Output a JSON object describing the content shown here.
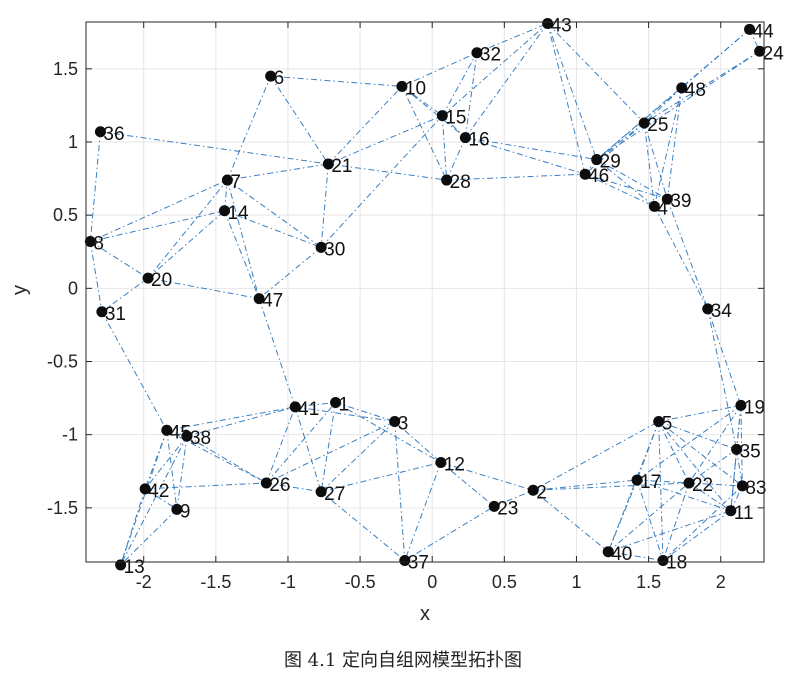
{
  "chart_data": {
    "type": "scatter",
    "title": "",
    "xlabel": "x",
    "ylabel": "y",
    "xlim": [
      -2.4,
      2.3
    ],
    "ylim": [
      -1.87,
      1.82
    ],
    "xticks": [
      -2,
      -1.5,
      -1,
      -0.5,
      0,
      0.5,
      1,
      1.5,
      2
    ],
    "xtick_labels": [
      "-2",
      "-1.5",
      "-1",
      "-0.5",
      "0",
      "0.5",
      "1",
      "1.5",
      "2"
    ],
    "yticks": [
      -1.5,
      -1,
      -0.5,
      0,
      0.5,
      1,
      1.5
    ],
    "ytick_labels": [
      "-1.5",
      "-1",
      "-0.5",
      "0",
      "0.5",
      "1",
      "1.5"
    ],
    "grid": true,
    "colors": {
      "edge": "#3a7fc1",
      "node": "#0d0d0d",
      "grid": "#e6e6e6",
      "axis": "#262626"
    },
    "nodes": [
      {
        "id": "1",
        "x": -0.67,
        "y": -0.78
      },
      {
        "id": "3",
        "x": -0.26,
        "y": -0.91
      },
      {
        "id": "4",
        "x": 1.54,
        "y": 0.56
      },
      {
        "id": "5",
        "x": 1.57,
        "y": -0.91
      },
      {
        "id": "6",
        "x": -1.12,
        "y": 1.45
      },
      {
        "id": "7",
        "x": -1.42,
        "y": 0.74
      },
      {
        "id": "8",
        "x": -2.37,
        "y": 0.32
      },
      {
        "id": "9",
        "x": -1.77,
        "y": -1.51
      },
      {
        "id": "10",
        "x": -0.21,
        "y": 1.38
      },
      {
        "id": "11",
        "x": 2.07,
        "y": -1.52
      },
      {
        "id": "12",
        "x": 0.06,
        "y": -1.19
      },
      {
        "id": "13",
        "x": -2.16,
        "y": -1.89
      },
      {
        "id": "14",
        "x": -1.44,
        "y": 0.53
      },
      {
        "id": "15",
        "x": 0.07,
        "y": 1.18
      },
      {
        "id": "16",
        "x": 0.23,
        "y": 1.03
      },
      {
        "id": "17",
        "x": 1.42,
        "y": -1.31
      },
      {
        "id": "18",
        "x": 1.6,
        "y": -1.86
      },
      {
        "id": "19",
        "x": 2.14,
        "y": -0.8
      },
      {
        "id": "20",
        "x": -1.97,
        "y": 0.07
      },
      {
        "id": "21",
        "x": -0.72,
        "y": 0.85
      },
      {
        "id": "22",
        "x": 1.78,
        "y": -1.33
      },
      {
        "id": "23",
        "x": 0.43,
        "y": -1.49
      },
      {
        "id": "24",
        "x": 2.27,
        "y": 1.62
      },
      {
        "id": "25",
        "x": 1.47,
        "y": 1.13
      },
      {
        "id": "26",
        "x": -1.15,
        "y": -1.33
      },
      {
        "id": "27",
        "x": -0.77,
        "y": -1.39
      },
      {
        "id": "28",
        "x": 0.1,
        "y": 0.74
      },
      {
        "id": "29",
        "x": 1.14,
        "y": 0.88
      },
      {
        "id": "30",
        "x": -0.77,
        "y": 0.28
      },
      {
        "id": "31",
        "x": -2.29,
        "y": -0.16
      },
      {
        "id": "32",
        "x": 0.31,
        "y": 1.61
      },
      {
        "id": "34",
        "x": 1.91,
        "y": -0.14
      },
      {
        "id": "35",
        "x": 2.11,
        "y": -1.1
      },
      {
        "id": "36",
        "x": -2.3,
        "y": 1.07
      },
      {
        "id": "37",
        "x": -0.19,
        "y": -1.86
      },
      {
        "id": "38",
        "x": -1.7,
        "y": -1.01
      },
      {
        "id": "39",
        "x": 1.63,
        "y": 0.61
      },
      {
        "id": "41",
        "x": -0.95,
        "y": -0.81
      },
      {
        "id": "42",
        "x": -1.99,
        "y": -1.37
      },
      {
        "id": "43",
        "x": 0.8,
        "y": 1.81
      },
      {
        "id": "44",
        "x": 2.2,
        "y": 1.77
      },
      {
        "id": "45",
        "x": -1.84,
        "y": -0.97
      },
      {
        "id": "46",
        "x": 1.06,
        "y": 0.78
      },
      {
        "id": "47",
        "x": -1.2,
        "y": -0.07
      },
      {
        "id": "48",
        "x": 1.73,
        "y": 1.37
      },
      {
        "id": "40",
        "x": 1.22,
        "y": -1.8
      },
      {
        "id": "2",
        "x": 0.7,
        "y": -1.38
      },
      {
        "id": "83",
        "x": 2.15,
        "y": -1.35
      }
    ],
    "edges": [
      [
        "36",
        "8"
      ],
      [
        "8",
        "20"
      ],
      [
        "8",
        "7"
      ],
      [
        "8",
        "14"
      ],
      [
        "8",
        "31"
      ],
      [
        "31",
        "20"
      ],
      [
        "31",
        "45"
      ],
      [
        "20",
        "14"
      ],
      [
        "20",
        "7"
      ],
      [
        "20",
        "47"
      ],
      [
        "14",
        "7"
      ],
      [
        "14",
        "30"
      ],
      [
        "14",
        "47"
      ],
      [
        "7",
        "6"
      ],
      [
        "7",
        "21"
      ],
      [
        "7",
        "30"
      ],
      [
        "7",
        "47"
      ],
      [
        "6",
        "21"
      ],
      [
        "6",
        "10"
      ],
      [
        "36",
        "21"
      ],
      [
        "21",
        "30"
      ],
      [
        "21",
        "10"
      ],
      [
        "21",
        "15"
      ],
      [
        "21",
        "28"
      ],
      [
        "30",
        "47"
      ],
      [
        "47",
        "41"
      ],
      [
        "30",
        "15"
      ],
      [
        "10",
        "15"
      ],
      [
        "10",
        "32"
      ],
      [
        "10",
        "28"
      ],
      [
        "10",
        "16"
      ],
      [
        "15",
        "16"
      ],
      [
        "15",
        "32"
      ],
      [
        "15",
        "28"
      ],
      [
        "16",
        "32"
      ],
      [
        "16",
        "43"
      ],
      [
        "16",
        "29"
      ],
      [
        "16",
        "46"
      ],
      [
        "28",
        "46"
      ],
      [
        "28",
        "16"
      ],
      [
        "32",
        "43"
      ],
      [
        "15",
        "43"
      ],
      [
        "43",
        "25"
      ],
      [
        "43",
        "29"
      ],
      [
        "43",
        "46"
      ],
      [
        "44",
        "48"
      ],
      [
        "44",
        "24"
      ],
      [
        "24",
        "25"
      ],
      [
        "24",
        "29"
      ],
      [
        "48",
        "25"
      ],
      [
        "48",
        "29"
      ],
      [
        "48",
        "39"
      ],
      [
        "48",
        "4"
      ],
      [
        "44",
        "29"
      ],
      [
        "25",
        "29"
      ],
      [
        "25",
        "46"
      ],
      [
        "25",
        "4"
      ],
      [
        "25",
        "39"
      ],
      [
        "29",
        "46"
      ],
      [
        "29",
        "4"
      ],
      [
        "29",
        "39"
      ],
      [
        "46",
        "4"
      ],
      [
        "46",
        "39"
      ],
      [
        "4",
        "39"
      ],
      [
        "4",
        "34"
      ],
      [
        "39",
        "34"
      ],
      [
        "34",
        "19"
      ],
      [
        "34",
        "35"
      ],
      [
        "45",
        "38"
      ],
      [
        "45",
        "42"
      ],
      [
        "45",
        "9"
      ],
      [
        "45",
        "13"
      ],
      [
        "45",
        "26"
      ],
      [
        "45",
        "41"
      ],
      [
        "38",
        "42"
      ],
      [
        "38",
        "9"
      ],
      [
        "38",
        "26"
      ],
      [
        "38",
        "41"
      ],
      [
        "38",
        "13"
      ],
      [
        "42",
        "9"
      ],
      [
        "42",
        "13"
      ],
      [
        "42",
        "26"
      ],
      [
        "9",
        "13"
      ],
      [
        "26",
        "41"
      ],
      [
        "26",
        "1"
      ],
      [
        "26",
        "3"
      ],
      [
        "26",
        "27"
      ],
      [
        "41",
        "1"
      ],
      [
        "41",
        "27"
      ],
      [
        "41",
        "3"
      ],
      [
        "1",
        "3"
      ],
      [
        "1",
        "27"
      ],
      [
        "1",
        "12"
      ],
      [
        "3",
        "27"
      ],
      [
        "3",
        "12"
      ],
      [
        "3",
        "37"
      ],
      [
        "27",
        "12"
      ],
      [
        "27",
        "37"
      ],
      [
        "12",
        "37"
      ],
      [
        "12",
        "23"
      ],
      [
        "12",
        "2"
      ],
      [
        "37",
        "23"
      ],
      [
        "23",
        "2"
      ],
      [
        "2",
        "5"
      ],
      [
        "2",
        "17"
      ],
      [
        "2",
        "40"
      ],
      [
        "2",
        "22"
      ],
      [
        "5",
        "17"
      ],
      [
        "5",
        "19"
      ],
      [
        "5",
        "35"
      ],
      [
        "5",
        "22"
      ],
      [
        "5",
        "11"
      ],
      [
        "5",
        "83"
      ],
      [
        "5",
        "40"
      ],
      [
        "5",
        "18"
      ],
      [
        "17",
        "22"
      ],
      [
        "17",
        "40"
      ],
      [
        "17",
        "18"
      ],
      [
        "17",
        "11"
      ],
      [
        "22",
        "11"
      ],
      [
        "22",
        "83"
      ],
      [
        "22",
        "35"
      ],
      [
        "22",
        "18"
      ],
      [
        "19",
        "35"
      ],
      [
        "19",
        "83"
      ],
      [
        "19",
        "22"
      ],
      [
        "19",
        "11"
      ],
      [
        "35",
        "83"
      ],
      [
        "35",
        "11"
      ],
      [
        "11",
        "83"
      ],
      [
        "11",
        "18"
      ],
      [
        "40",
        "18"
      ],
      [
        "40",
        "22"
      ],
      [
        "40",
        "11"
      ],
      [
        "18",
        "83"
      ],
      [
        "19",
        "17"
      ]
    ]
  },
  "figure": {
    "caption": "图 4.1   定向自组网模型拓扑图"
  }
}
